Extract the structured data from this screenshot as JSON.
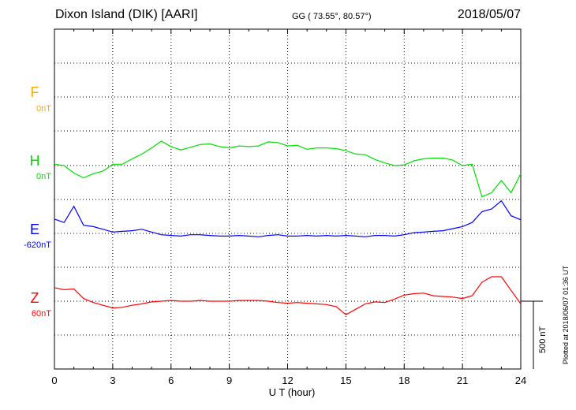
{
  "header": {
    "title": "Dixon Island (DIK)  [AARI]",
    "coords": "GG ( 73.55°,  80.57°)",
    "date": "2018/05/07"
  },
  "components": [
    {
      "name": "F",
      "baseline": "0nT",
      "color": "#ffa500"
    },
    {
      "name": "H",
      "baseline": "0nT",
      "color": "#00e000"
    },
    {
      "name": "E",
      "baseline": "-620nT",
      "color": "#0000ff"
    },
    {
      "name": "Z",
      "baseline": "60nT",
      "color": "#ff0000"
    }
  ],
  "scale_label": "500 nT",
  "plotted_text": "Plotted at 2018/06/07 01:36 UT",
  "chart_data": {
    "type": "line",
    "xlabel": "U T (hour)",
    "xlim": [
      0,
      24
    ],
    "xticks": [
      "0",
      "3",
      "6",
      "9",
      "12",
      "15",
      "18",
      "21",
      "24"
    ],
    "grid": true,
    "y_units": "nT",
    "scale_bar_nT": 500,
    "series": [
      {
        "name": "H",
        "color": "#00e000",
        "x": [
          0,
          0.5,
          1,
          1.5,
          2,
          2.5,
          3,
          3.5,
          4,
          4.5,
          5,
          5.5,
          6,
          6.5,
          7,
          7.5,
          8,
          8.5,
          9,
          9.5,
          10,
          10.5,
          11,
          11.5,
          12,
          12.5,
          13,
          13.5,
          14,
          14.5,
          15,
          15.5,
          16,
          16.5,
          17,
          17.5,
          18,
          18.5,
          19,
          19.5,
          20,
          20.5,
          21,
          21.5,
          22,
          22.5,
          23,
          23.5,
          24
        ],
        "values": [
          10,
          0,
          -55,
          -90,
          -60,
          -40,
          10,
          10,
          50,
          85,
          130,
          180,
          140,
          115,
          135,
          155,
          160,
          140,
          130,
          145,
          140,
          145,
          175,
          170,
          145,
          150,
          120,
          130,
          130,
          125,
          110,
          85,
          80,
          45,
          20,
          0,
          5,
          35,
          50,
          55,
          55,
          40,
          0,
          10,
          -230,
          -200,
          -110,
          -200,
          -60
        ]
      },
      {
        "name": "E",
        "color": "#0000ff",
        "x": [
          0,
          0.5,
          1,
          1.5,
          2,
          2.5,
          3,
          3.5,
          4,
          4.5,
          5,
          5.5,
          6,
          6.5,
          7,
          7.5,
          8,
          8.5,
          9,
          9.5,
          10,
          10.5,
          11,
          11.5,
          12,
          12.5,
          13,
          13.5,
          14,
          14.5,
          15,
          15.5,
          16,
          16.5,
          17,
          17.5,
          18,
          18.5,
          19,
          19.5,
          20,
          20.5,
          21,
          21.5,
          22,
          22.5,
          23,
          23.5,
          24
        ],
        "values": [
          105,
          80,
          200,
          60,
          50,
          30,
          10,
          15,
          20,
          30,
          10,
          -10,
          -15,
          -20,
          -10,
          -10,
          -15,
          -20,
          -20,
          -15,
          -20,
          -25,
          -15,
          -10,
          -20,
          -20,
          -15,
          -20,
          -15,
          -20,
          -15,
          -20,
          -25,
          -15,
          -15,
          -20,
          -10,
          5,
          10,
          15,
          20,
          35,
          50,
          80,
          160,
          180,
          240,
          130,
          100
        ]
      },
      {
        "name": "Z",
        "color": "#ff0000",
        "x": [
          0,
          0.5,
          1,
          1.5,
          2,
          2.5,
          3,
          3.5,
          4,
          4.5,
          5,
          5.5,
          6,
          6.5,
          7,
          7.5,
          8,
          8.5,
          9,
          9.5,
          10,
          10.5,
          11,
          11.5,
          12,
          12.5,
          13,
          13.5,
          14,
          14.5,
          15,
          15.5,
          16,
          16.5,
          17,
          17.5,
          18,
          18.5,
          19,
          19.5,
          20,
          20.5,
          21,
          21.5,
          22,
          22.5,
          23,
          23.5,
          24
        ],
        "values": [
          100,
          85,
          90,
          20,
          -10,
          -30,
          -50,
          -45,
          -30,
          -20,
          -5,
          0,
          5,
          0,
          0,
          5,
          0,
          0,
          0,
          5,
          5,
          5,
          0,
          -10,
          -15,
          -10,
          -15,
          -20,
          -25,
          -40,
          -100,
          -60,
          -20,
          -5,
          -10,
          15,
          45,
          55,
          60,
          40,
          35,
          30,
          20,
          40,
          140,
          180,
          180,
          80,
          -20
        ]
      }
    ]
  }
}
